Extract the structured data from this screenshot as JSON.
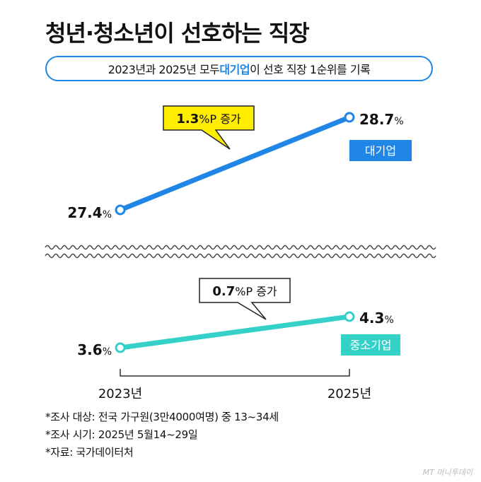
{
  "title": "청년·청소년이 선호하는 직장",
  "subtitle": {
    "prefix": "2023년과 2025년 모두 ",
    "highlight": "대기업",
    "suffix": "이 선호 직장 1순위를 기록"
  },
  "colors": {
    "large": "#1f86e6",
    "small": "#34d1c8",
    "callout1_bg": "#ffed00",
    "axis": "#333333"
  },
  "chart_data": {
    "type": "line",
    "categories": [
      "2023년",
      "2025년"
    ],
    "series": [
      {
        "name": "대기업",
        "values": [
          27.4,
          28.7
        ],
        "labels": [
          "27.4",
          "28.7"
        ],
        "unit": "%",
        "callout": {
          "num": "1.3",
          "unit": "%P",
          "text": "증가"
        }
      },
      {
        "name": "중소기업",
        "values": [
          3.6,
          4.3
        ],
        "labels": [
          "3.6",
          "4.3"
        ],
        "unit": "%",
        "callout": {
          "num": "0.7",
          "unit": "%P",
          "text": "증가"
        }
      }
    ],
    "broken_axis": true
  },
  "notes": [
    "*조사 대상: 전국 가구원(3만4000여명) 중 13~34세",
    "*조사 시기: 2025년 5월14~29일",
    "*자료: 국가데이터처"
  ],
  "credit": "MT 머니투데이"
}
